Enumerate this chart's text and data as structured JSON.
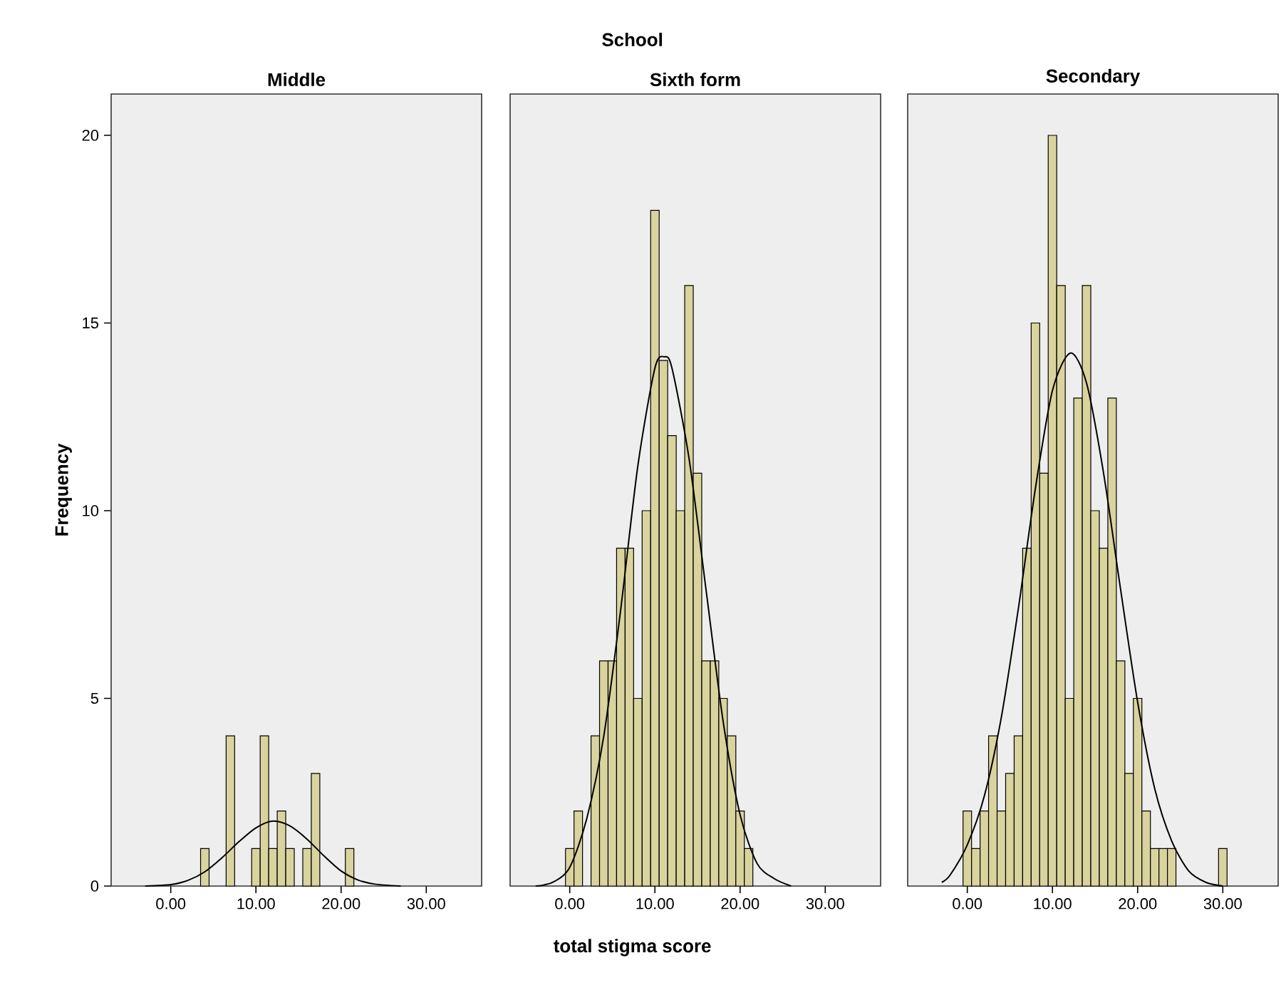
{
  "chart_data": [
    {
      "type": "histogram",
      "title": "Middle",
      "ylabel": "Frequency",
      "xlim": [
        -7,
        36.5
      ],
      "ylim": [
        0,
        21.1
      ],
      "xticks": [
        {
          "value": 0,
          "label": "0.00"
        },
        {
          "value": 10,
          "label": "10.00"
        },
        {
          "value": 20,
          "label": "20.00"
        },
        {
          "value": 30,
          "label": "30.00"
        }
      ],
      "yticks": [
        0,
        5,
        10,
        15,
        20
      ],
      "series": [
        {
          "color": "#d9d39e",
          "bins": [
            3.5,
            4.5,
            5.5,
            6.5,
            7.5,
            8.5,
            9.5,
            10.5,
            11.5,
            12.5,
            13.5,
            14.5,
            15.5,
            16.5,
            17.5,
            18.5,
            19.5,
            20.5,
            21.5
          ],
          "values": [
            1,
            0,
            0,
            4,
            0,
            0,
            1,
            4,
            1,
            2,
            1,
            0,
            1,
            3,
            0,
            0,
            0,
            1
          ]
        },
        {
          "type": "line",
          "color": "#000000",
          "x": [
            -3,
            0,
            2,
            4,
            6,
            8,
            10,
            12,
            14,
            16,
            18,
            20,
            22,
            24,
            27
          ],
          "values": [
            0,
            0.04,
            0.15,
            0.38,
            0.75,
            1.18,
            1.55,
            1.73,
            1.6,
            1.25,
            0.8,
            0.4,
            0.16,
            0.05,
            0
          ]
        }
      ]
    },
    {
      "type": "histogram",
      "title": "Sixth form",
      "xlabel": "total stigma score",
      "annotations": [
        "School"
      ],
      "tick_labels": "x",
      "xlim": [
        -7,
        36.5
      ],
      "ylim": [
        0,
        21.1
      ],
      "xticks": [
        {
          "value": 0,
          "label": "0.00"
        },
        {
          "value": 10,
          "label": "10.00"
        },
        {
          "value": 20,
          "label": "20.00"
        },
        {
          "value": 30,
          "label": "30.00"
        }
      ],
      "yticks": [
        0,
        5,
        10,
        15,
        20
      ],
      "series": [
        {
          "color": "#d9d39e",
          "bins": [
            -0.5,
            0.5,
            1.5,
            2.5,
            3.5,
            4.5,
            5.5,
            6.5,
            7.5,
            8.5,
            9.5,
            10.5,
            11.5,
            12.5,
            13.5,
            14.5,
            15.5,
            16.5,
            17.5,
            18.5,
            19.5,
            20.5,
            21.5
          ],
          "values": [
            1,
            2,
            0,
            4,
            6,
            6,
            9,
            9,
            5,
            10,
            18,
            14,
            12,
            10,
            16,
            11,
            6,
            6,
            5,
            4,
            2,
            1
          ]
        },
        {
          "type": "line",
          "color": "#000000",
          "x": [
            -4,
            -2,
            0,
            2,
            4,
            6,
            8,
            10,
            11.1,
            12,
            14,
            16,
            18,
            20,
            22,
            24,
            26
          ],
          "values": [
            0,
            0.1,
            0.5,
            1.8,
            4.0,
            7.4,
            11.2,
            13.8,
            14.1,
            13.8,
            11.4,
            7.9,
            4.4,
            1.9,
            0.6,
            0.2,
            0
          ]
        }
      ]
    },
    {
      "type": "histogram",
      "title": "Secondary",
      "tick_labels": "x",
      "xlim": [
        -7,
        36.5
      ],
      "ylim": [
        0,
        21.1
      ],
      "xticks": [
        {
          "value": 0,
          "label": "0.00"
        },
        {
          "value": 10,
          "label": "10.00"
        },
        {
          "value": 20,
          "label": "20.00"
        },
        {
          "value": 30,
          "label": "30.00"
        }
      ],
      "yticks": [
        0,
        5,
        10,
        15,
        20
      ],
      "series": [
        {
          "color": "#d9d39e",
          "bins": [
            -0.5,
            0.5,
            1.5,
            2.5,
            3.5,
            4.5,
            5.5,
            6.5,
            7.5,
            8.5,
            9.5,
            10.5,
            11.5,
            12.5,
            13.5,
            14.5,
            15.5,
            16.5,
            17.5,
            18.5,
            19.5,
            20.5,
            21.5,
            22.5,
            23.5,
            24.5,
            25.5,
            26.5,
            27.5,
            28.5,
            29.5,
            30.5
          ],
          "values": [
            2,
            1,
            2,
            4,
            2,
            3,
            4,
            9,
            15,
            11,
            20,
            16,
            5,
            13,
            16,
            10,
            9,
            13,
            6,
            3,
            5,
            2,
            1,
            1,
            1,
            0,
            0,
            0,
            0,
            0,
            1
          ]
        },
        {
          "type": "line",
          "color": "#000000",
          "x": [
            -3,
            -2,
            0,
            2,
            4,
            6,
            8,
            10,
            12.1,
            14,
            16,
            18,
            20,
            22,
            24,
            26,
            28,
            30
          ],
          "values": [
            0.1,
            0.3,
            1.1,
            2.4,
            4.5,
            7.4,
            10.6,
            13.2,
            14.2,
            13.4,
            11.0,
            7.9,
            4.9,
            2.6,
            1.2,
            0.4,
            0.1,
            0
          ]
        }
      ]
    }
  ]
}
